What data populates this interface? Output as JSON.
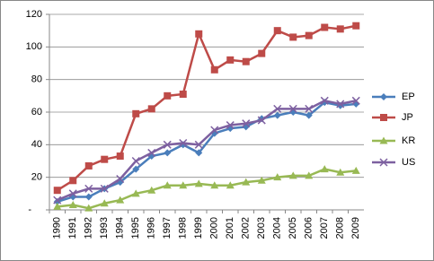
{
  "chart_data": {
    "type": "line",
    "categories": [
      "1990",
      "1991",
      "1992",
      "1993",
      "1994",
      "1995",
      "1996",
      "1997",
      "1998",
      "1999",
      "2000",
      "2001",
      "2002",
      "2003",
      "2004",
      "2005",
      "2006",
      "2007",
      "2008",
      "2009"
    ],
    "series": [
      {
        "name": "EP",
        "color": "#4a7ebb",
        "marker": "diamond",
        "values": [
          5,
          8,
          8,
          13,
          17,
          25,
          33,
          35,
          40,
          35,
          47,
          50,
          51,
          56,
          58,
          60,
          58,
          66,
          64,
          65
        ]
      },
      {
        "name": "JP",
        "color": "#be4b48",
        "marker": "square",
        "values": [
          12,
          18,
          27,
          31,
          33,
          59,
          62,
          70,
          71,
          108,
          86,
          92,
          91,
          96,
          110,
          106,
          107,
          112,
          111,
          113
        ]
      },
      {
        "name": "KR",
        "color": "#98b954",
        "marker": "triangle",
        "values": [
          2,
          3,
          1,
          4,
          6,
          10,
          12,
          15,
          15,
          16,
          15,
          15,
          17,
          18,
          20,
          21,
          21,
          25,
          23,
          24
        ]
      },
      {
        "name": "US",
        "color": "#7d60a0",
        "marker": "x",
        "values": [
          6,
          10,
          13,
          13,
          19,
          30,
          35,
          40,
          41,
          40,
          49,
          52,
          53,
          55,
          62,
          62,
          62,
          67,
          65,
          67
        ]
      }
    ],
    "ylim": [
      0,
      120
    ],
    "yticks": [
      {
        "value": 0,
        "label": "-"
      },
      20,
      40,
      60,
      80,
      100,
      120
    ],
    "grid": true,
    "legend": "right"
  }
}
